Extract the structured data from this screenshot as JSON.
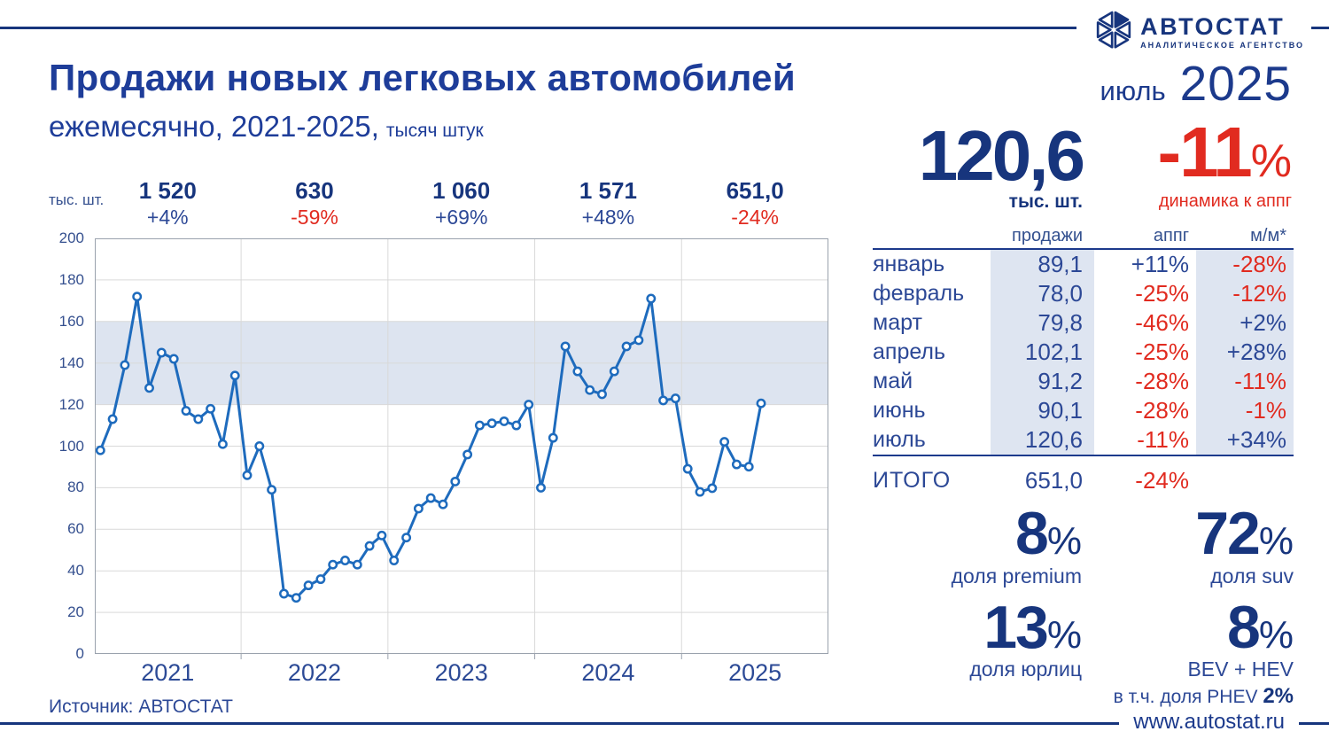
{
  "brand": {
    "name": "АВТОСТАТ",
    "tagline": "АНАЛИТИЧЕСКОЕ АГЕНТСТВО"
  },
  "header": {
    "title": "Продажи новых легковых автомобилей",
    "subtitle": "ежемесячно, 2021-2025,",
    "subtitle_unit": "тысяч штук",
    "period_month": "июль",
    "period_year": "2025"
  },
  "kpi": {
    "sales_value": "120,6",
    "sales_unit": "тыс. шт.",
    "yoy_value": "-11",
    "yoy_suffix": "%",
    "yoy_label": "динамика к аппг"
  },
  "table": {
    "col_sales": "продажи",
    "col_yoy": "аппг",
    "col_mom": "м/м*",
    "rows": [
      {
        "month": "январь",
        "sales": "89,1",
        "yoy": "+11%",
        "mom": "-28%"
      },
      {
        "month": "февраль",
        "sales": "78,0",
        "yoy": "-25%",
        "mom": "-12%"
      },
      {
        "month": "март",
        "sales": "79,8",
        "yoy": "-46%",
        "mom": "+2%"
      },
      {
        "month": "апрель",
        "sales": "102,1",
        "yoy": "-25%",
        "mom": "+28%"
      },
      {
        "month": "май",
        "sales": "91,2",
        "yoy": "-28%",
        "mom": "-11%"
      },
      {
        "month": "июнь",
        "sales": "90,1",
        "yoy": "-28%",
        "mom": "-1%"
      },
      {
        "month": "июль",
        "sales": "120,6",
        "yoy": "-11%",
        "mom": "+34%"
      }
    ],
    "total_label": "ИТОГО",
    "total_sales": "651,0",
    "total_yoy": "-24%"
  },
  "stats": [
    {
      "value": "8",
      "suffix": "%",
      "label": "доля premium"
    },
    {
      "value": "72",
      "suffix": "%",
      "label": "доля suv"
    },
    {
      "value": "13",
      "suffix": "%",
      "label": "доля юрлиц"
    },
    {
      "value": "8",
      "suffix": "%",
      "label": "BEV + HEV"
    }
  ],
  "phev_note": {
    "prefix": "в т.ч. доля PHEV",
    "value": "2%"
  },
  "url": "www.autostat.ru",
  "source": "Источник: АВТОСТАТ",
  "chart_data": {
    "type": "line",
    "title": "Продажи новых легковых автомобилей, ежемесячно, 2021-2025, тысяч штук",
    "ylabel": "тыс. шт.",
    "ylim": [
      0,
      200
    ],
    "ytick_step": 20,
    "highlight_band": [
      120,
      160
    ],
    "grid": true,
    "years": [
      {
        "year": "2021",
        "total": "1 520",
        "yoy": "+4%",
        "monthly": [
          98,
          113,
          139,
          172,
          128,
          145,
          142,
          117,
          113,
          118,
          101,
          134
        ]
      },
      {
        "year": "2022",
        "total": "630",
        "yoy": "-59%",
        "monthly": [
          86,
          100,
          79,
          29,
          27,
          33,
          36,
          43,
          45,
          43,
          52,
          57
        ]
      },
      {
        "year": "2023",
        "total": "1 060",
        "yoy": "+69%",
        "monthly": [
          45,
          56,
          70,
          75,
          72,
          83,
          96,
          110,
          111,
          112,
          110,
          120
        ]
      },
      {
        "year": "2024",
        "total": "1 571",
        "yoy": "+48%",
        "monthly": [
          80,
          104,
          148,
          136,
          127,
          125,
          136,
          148,
          151,
          171,
          122,
          123
        ]
      },
      {
        "year": "2025",
        "total": "651,0",
        "yoy": "-24%",
        "monthly": [
          89.1,
          78.0,
          79.8,
          102.1,
          91.2,
          90.1,
          120.6
        ]
      }
    ],
    "colors": {
      "line": "#1e6bbd",
      "band": "#dde4f0",
      "grid": "#d9d9d9",
      "border": "#9aa2ad"
    }
  }
}
